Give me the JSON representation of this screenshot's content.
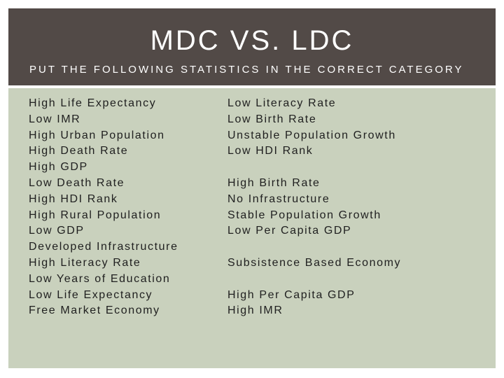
{
  "slide": {
    "title": "MDC VS. LDC",
    "subtitle": "PUT THE FOLLOWING STATISTICS IN THE CORRECT CATEGORY"
  },
  "left_list": [
    "High Life Expectancy",
    "Low IMR",
    "High Urban Population",
    "High Death Rate",
    "High GDP",
    "Low Death Rate",
    "High HDI Rank",
    "High Rural Population",
    "Low GDP",
    "Developed Infrastructure",
    "High Literacy Rate",
    "Low Years of Education",
    "Low Life Expectancy",
    "Free Market Economy"
  ],
  "right_list": [
    "Low Literacy Rate",
    "Low Birth Rate",
    "Unstable Population Growth",
    "Low HDI Rank",
    "",
    "High Birth Rate",
    "No Infrastructure",
    "Stable Population Growth",
    "Low Per Capita GDP",
    "",
    "Subsistence Based Economy",
    "",
    "High Per Capita GDP",
    "High IMR"
  ],
  "colors": {
    "header_bg": "#524a47",
    "body_bg": "#c9d1bd",
    "text": "#1f1f1f"
  }
}
